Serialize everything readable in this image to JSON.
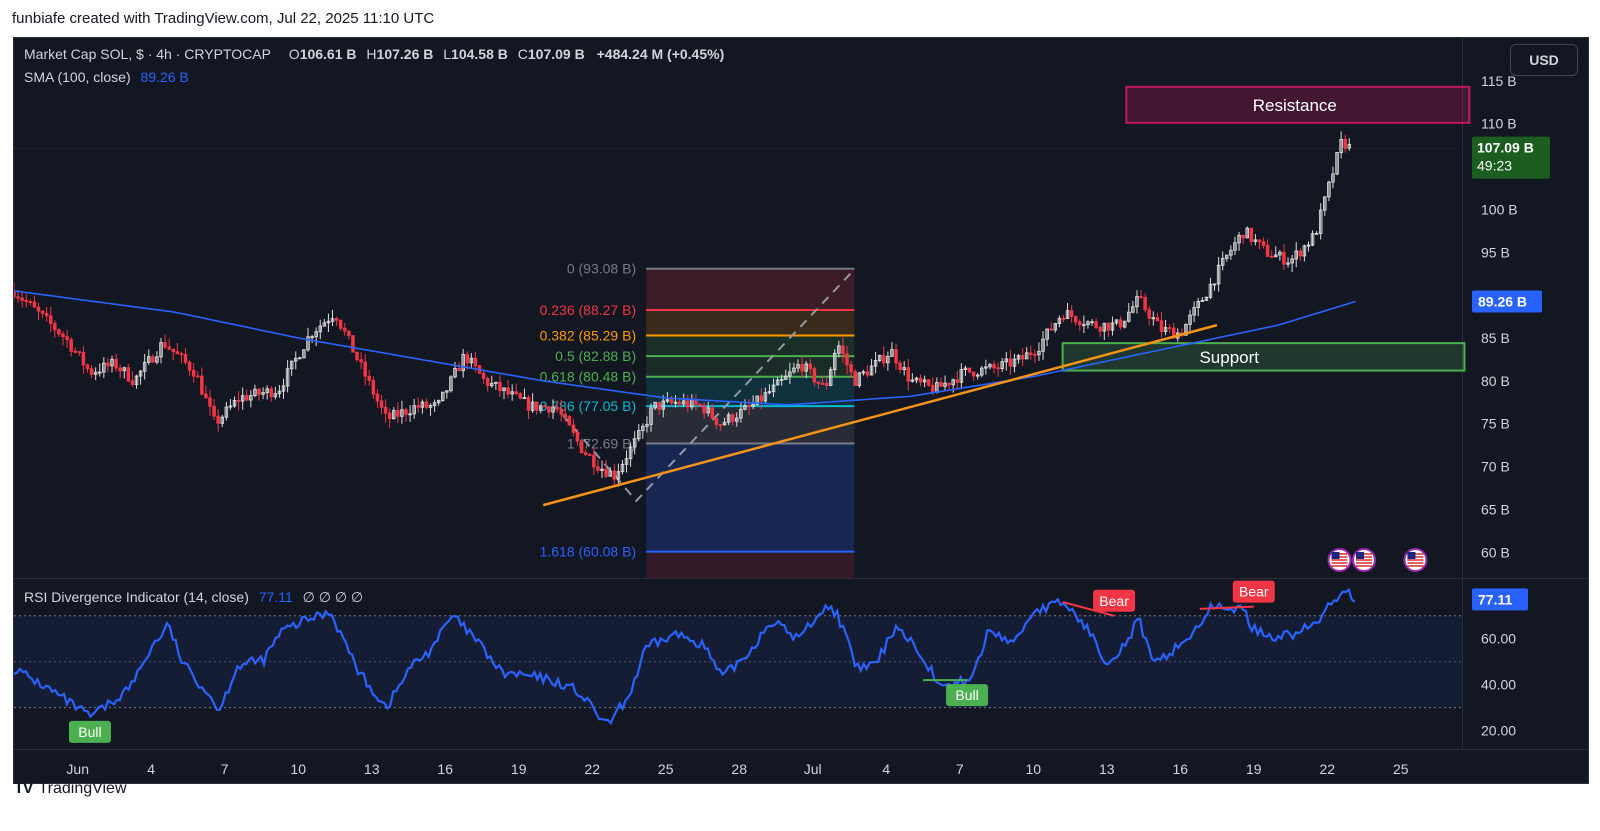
{
  "header": {
    "attribution": "funbiafe created with TradingView.com, Jul 22, 2025 11:10 UTC"
  },
  "legend": {
    "symbol": "Market Cap SOL, $ · 4h · CRYPTOCAP",
    "open_label": "O",
    "open": "106.61 B",
    "high_label": "H",
    "high": "107.26 B",
    "low_label": "L",
    "low": "104.58 B",
    "close_label": "C",
    "close": "107.09 B",
    "change": "+484.24 M (+0.45%)",
    "sma_label": "SMA (100, close)",
    "sma_value": "89.26 B",
    "rsi_label": "RSI Divergence Indicator (14, close)",
    "rsi_value": "77.11",
    "rsi_extra": "∅ ∅ ∅ ∅"
  },
  "currency_button": "USD",
  "footer": {
    "logo": "TV",
    "brand": "TradingView"
  },
  "colors": {
    "background": "#131722",
    "up": "#dcdcdc",
    "down": "#f23645",
    "sma": "#2962ff",
    "trendline": "#f7931a",
    "resistance": "#c2185b",
    "support": "#4caf50",
    "rsi_line": "#2962ff",
    "bull": "#4caf50",
    "bear": "#f23645",
    "price_tag": "#1b5e20"
  },
  "chart_data": [
    {
      "type": "candlestick",
      "title": "Market Cap SOL, $ · 4h · CRYPTOCAP",
      "y_unit": "B",
      "ylim": [
        57,
        120
      ],
      "y_ticks": [
        60,
        65,
        70,
        75,
        80,
        85,
        90,
        95,
        100,
        105,
        110,
        115
      ],
      "y_tick_labels": [
        "60 B",
        "65 B",
        "70 B",
        "75 B",
        "80 B",
        "85 B",
        "",
        "95 B",
        "100 B",
        "",
        "110 B",
        "115 B"
      ],
      "x_tick_labels": [
        "Jun",
        "4",
        "7",
        "10",
        "13",
        "16",
        "19",
        "22",
        "25",
        "28",
        "Jul",
        "4",
        "7",
        "10",
        "13",
        "16",
        "19",
        "22",
        "25"
      ],
      "x_ticks_days": [
        1,
        4,
        7,
        10,
        13,
        16,
        19,
        22,
        25,
        28,
        31,
        34,
        37,
        40,
        43,
        46,
        49,
        52,
        55
      ],
      "x_range_days": [
        -1.6,
        57.5
      ],
      "price_path": [
        [
          -1.6,
          90.5
        ],
        [
          0.5,
          85
        ],
        [
          1.5,
          81
        ],
        [
          2.5,
          82
        ],
        [
          3.3,
          80
        ],
        [
          4.5,
          84.5
        ],
        [
          5.8,
          81
        ],
        [
          6.6,
          75
        ],
        [
          7.6,
          78
        ],
        [
          9.2,
          79
        ],
        [
          10.5,
          85.5
        ],
        [
          11.5,
          88
        ],
        [
          12.5,
          82
        ],
        [
          13.6,
          75.5
        ],
        [
          14.8,
          77
        ],
        [
          15.7,
          77
        ],
        [
          16.8,
          83
        ],
        [
          17.6,
          80
        ],
        [
          19.5,
          77
        ],
        [
          20.5,
          77
        ],
        [
          21.6,
          72
        ],
        [
          22.3,
          70
        ],
        [
          22.9,
          69
        ],
        [
          24.0,
          74
        ],
        [
          24.5,
          77
        ],
        [
          25.5,
          77.5
        ],
        [
          26.5,
          77
        ],
        [
          27.2,
          75
        ],
        [
          28.5,
          77
        ],
        [
          29.8,
          80
        ],
        [
          30.5,
          82
        ],
        [
          31.5,
          79
        ],
        [
          32.0,
          84.5
        ],
        [
          32.7,
          80
        ],
        [
          33.6,
          82
        ],
        [
          34.2,
          83.5
        ],
        [
          35.0,
          80
        ],
        [
          36.0,
          79
        ],
        [
          37.2,
          81
        ],
        [
          38.5,
          81.5
        ],
        [
          39.5,
          82.5
        ],
        [
          40.2,
          84
        ],
        [
          41.2,
          88
        ],
        [
          42.5,
          86.5
        ],
        [
          43.5,
          86.5
        ],
        [
          44.3,
          89.5
        ],
        [
          45.2,
          86
        ],
        [
          46.0,
          85.5
        ],
        [
          47.0,
          90
        ],
        [
          48.0,
          95
        ],
        [
          48.6,
          97.5
        ],
        [
          49.5,
          95
        ],
        [
          50.5,
          94
        ],
        [
          51.5,
          97
        ],
        [
          52.0,
          102
        ],
        [
          52.6,
          108
        ],
        [
          53.0,
          107
        ]
      ],
      "sma": {
        "name": "SMA (100, close)",
        "last_value": 89.26,
        "label": "89.26 B",
        "points": [
          [
            -1.6,
            90.5
          ],
          [
            5,
            88
          ],
          [
            10,
            85
          ],
          [
            15,
            82.5
          ],
          [
            20,
            80
          ],
          [
            25,
            78
          ],
          [
            30,
            77.2
          ],
          [
            35,
            78.2
          ],
          [
            40,
            80.5
          ],
          [
            45,
            83.5
          ],
          [
            50,
            86.5
          ],
          [
            53.2,
            89.3
          ]
        ]
      },
      "last_price": {
        "label": "107.09 B",
        "timer": "49:23",
        "value": 107.09
      },
      "trendline": {
        "from": [
          20.0,
          65.5
        ],
        "to": [
          47.5,
          86.5
        ]
      },
      "fibonacci": {
        "x_range": [
          24.2,
          32.7
        ],
        "levels": [
          {
            "ratio": 0,
            "label": "0 (93.08 B)",
            "value": 93.08,
            "color": "#787b86"
          },
          {
            "ratio": 0.236,
            "label": "0.236 (88.27 B)",
            "value": 88.27,
            "color": "#f23645"
          },
          {
            "ratio": 0.382,
            "label": "0.382 (85.29 B)",
            "value": 85.29,
            "color": "#ff9800"
          },
          {
            "ratio": 0.5,
            "label": "0.5 (82.88 B)",
            "value": 82.88,
            "color": "#4caf50"
          },
          {
            "ratio": 0.618,
            "label": "0.618 (80.48 B)",
            "value": 80.48,
            "color": "#4caf50"
          },
          {
            "ratio": 0.786,
            "label": "0.786 (77.05 B)",
            "value": 77.05,
            "color": "#00bcd4"
          },
          {
            "ratio": 1,
            "label": "1 (72.69 B)",
            "value": 72.69,
            "color": "#787b86"
          },
          {
            "ratio": 1.618,
            "label": "1.618 (60.08 B)",
            "value": 60.08,
            "color": "#2962ff"
          }
        ]
      },
      "resistance_zone": {
        "label": "Resistance",
        "x_range": [
          43.8,
          57.8
        ],
        "y_range": [
          110.1,
          114.3
        ]
      },
      "support_zone": {
        "label": "Support",
        "x_range": [
          41.2,
          57.6
        ],
        "y_range": [
          81.2,
          84.4
        ]
      },
      "event_icons_days": [
        52.5,
        53.5,
        55.6
      ]
    },
    {
      "type": "line",
      "title": "RSI Divergence Indicator (14, close)",
      "last_value": 77.11,
      "ylim": [
        12,
        86
      ],
      "y_ticks": [
        20,
        40,
        60
      ],
      "y_tick_labels": [
        "20.00",
        "40.00",
        "60.00"
      ],
      "band": [
        30,
        70
      ],
      "points": [
        [
          -1.6,
          47
        ],
        [
          0,
          37
        ],
        [
          1.5,
          26
        ],
        [
          2.5,
          33
        ],
        [
          3.2,
          40
        ],
        [
          4.0,
          56
        ],
        [
          4.7,
          66
        ],
        [
          5.3,
          49
        ],
        [
          6.2,
          38
        ],
        [
          6.8,
          29
        ],
        [
          7.5,
          48
        ],
        [
          8.6,
          51
        ],
        [
          9.3,
          63
        ],
        [
          10.3,
          68
        ],
        [
          11.3,
          72
        ],
        [
          12.5,
          45
        ],
        [
          13.6,
          30
        ],
        [
          14.6,
          48
        ],
        [
          15.3,
          54
        ],
        [
          16.3,
          70
        ],
        [
          17.3,
          59
        ],
        [
          18.3,
          45
        ],
        [
          19.3,
          44
        ],
        [
          20.3,
          42
        ],
        [
          21.3,
          38
        ],
        [
          22.0,
          30
        ],
        [
          22.6,
          22
        ],
        [
          23.5,
          35
        ],
        [
          24.2,
          56
        ],
        [
          25.4,
          62
        ],
        [
          26.5,
          58
        ],
        [
          27.3,
          43
        ],
        [
          28.4,
          54
        ],
        [
          29.3,
          68
        ],
        [
          30.4,
          60
        ],
        [
          31.5,
          74
        ],
        [
          32.0,
          71
        ],
        [
          32.8,
          47
        ],
        [
          33.6,
          49
        ],
        [
          34.4,
          66
        ],
        [
          35.4,
          54
        ],
        [
          36.3,
          38
        ],
        [
          37.5,
          43
        ],
        [
          38.2,
          64
        ],
        [
          39.2,
          58
        ],
        [
          40.0,
          72
        ],
        [
          40.7,
          74
        ],
        [
          41.2,
          76
        ],
        [
          42.1,
          66
        ],
        [
          43.0,
          50
        ],
        [
          43.8,
          58
        ],
        [
          44.3,
          69
        ],
        [
          44.9,
          48
        ],
        [
          45.8,
          56
        ],
        [
          46.5,
          62
        ],
        [
          47.2,
          73
        ],
        [
          48.0,
          74
        ],
        [
          48.6,
          72
        ],
        [
          49.0,
          64
        ],
        [
          49.8,
          61
        ],
        [
          50.6,
          62
        ],
        [
          51.5,
          66
        ],
        [
          52.2,
          76
        ],
        [
          52.7,
          82
        ],
        [
          53.2,
          77
        ]
      ],
      "divergence_labels": [
        {
          "text": "Bull",
          "kind": "bull",
          "day": 1.5,
          "value": 26,
          "line_from": null
        },
        {
          "text": "Bull",
          "kind": "bull",
          "day": 37.3,
          "value": 42,
          "line_from": [
            35.5,
            42
          ]
        },
        {
          "text": "Bear",
          "kind": "bear",
          "day": 43.3,
          "value": 70,
          "line_from": [
            41.2,
            76
          ]
        },
        {
          "text": "Bear",
          "kind": "bear",
          "day": 49.0,
          "value": 74,
          "line_from": [
            46.8,
            73
          ]
        }
      ]
    }
  ]
}
